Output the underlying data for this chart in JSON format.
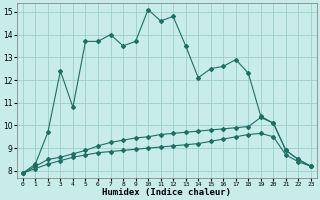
{
  "xlabel": "Humidex (Indice chaleur)",
  "bg_color": "#c8ecea",
  "grid_color": "#9ecfca",
  "line_color": "#1e6e64",
  "xlim": [
    -0.5,
    23.5
  ],
  "ylim": [
    7.7,
    15.4
  ],
  "xticks": [
    0,
    1,
    2,
    3,
    4,
    5,
    6,
    7,
    8,
    9,
    10,
    11,
    12,
    13,
    14,
    15,
    16,
    17,
    18,
    19,
    20,
    21,
    22,
    23
  ],
  "yticks": [
    8,
    9,
    10,
    11,
    12,
    13,
    14,
    15
  ],
  "line1_y": [
    7.9,
    8.3,
    9.7,
    12.4,
    10.8,
    13.7,
    13.7,
    14.0,
    13.5,
    13.7,
    15.1,
    14.6,
    14.8,
    13.5,
    12.1,
    12.5,
    12.6,
    12.9,
    12.3,
    10.4,
    10.1,
    8.9,
    8.5,
    8.2
  ],
  "line2_y": [
    7.9,
    8.2,
    8.5,
    8.6,
    8.75,
    8.9,
    9.1,
    9.25,
    9.35,
    9.45,
    9.5,
    9.6,
    9.65,
    9.7,
    9.75,
    9.8,
    9.85,
    9.9,
    9.95,
    10.35,
    10.1,
    8.9,
    8.5,
    8.2
  ],
  "line3_y": [
    7.9,
    8.1,
    8.3,
    8.45,
    8.6,
    8.7,
    8.8,
    8.85,
    8.9,
    8.95,
    9.0,
    9.05,
    9.1,
    9.15,
    9.2,
    9.3,
    9.4,
    9.5,
    9.6,
    9.65,
    9.5,
    8.7,
    8.4,
    8.2
  ]
}
